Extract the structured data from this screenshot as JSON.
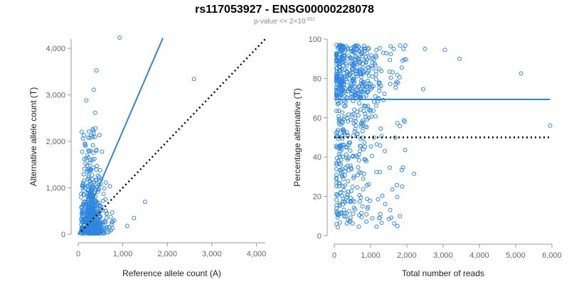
{
  "header": {
    "title": "rs117053927 - ENSG00000228078",
    "subtitle_prefix": "p-value <= 2×10",
    "subtitle_exponent": "-311"
  },
  "colors": {
    "points": "#2e86de",
    "fit": "#2e86de",
    "reference": "#000000",
    "axis": "#999999"
  },
  "chart_data": [
    {
      "type": "scatter",
      "xlabel": "Reference allele count (A)",
      "ylabel": "Alternative allele count (T)",
      "xlim": [
        0,
        4200
      ],
      "ylim": [
        0,
        4200
      ],
      "xticks": [
        0,
        1000,
        2000,
        3000,
        4000
      ],
      "xtick_labels": [
        "0",
        "1,000",
        "2,000",
        "3,000",
        "4,000"
      ],
      "yticks": [
        0,
        1000,
        2000,
        3000,
        4000
      ],
      "ytick_labels": [
        "0",
        "1,000",
        "2,000",
        "3,000",
        "4,000"
      ],
      "fit_line": {
        "from": [
          0,
          0
        ],
        "to": [
          1900,
          4220
        ]
      },
      "reference_line": {
        "from": [
          0,
          0
        ],
        "to": [
          4200,
          4200
        ]
      },
      "notable_points": [
        [
          930,
          4230
        ],
        [
          2600,
          3340
        ],
        [
          1500,
          700
        ],
        [
          350,
          3110
        ],
        [
          180,
          2880
        ],
        [
          1100,
          180
        ],
        [
          1250,
          350
        ]
      ],
      "cluster": {
        "x_center": 200,
        "x_spread": 150,
        "y_scale": 400,
        "count": 650
      },
      "grid": false,
      "legend": "none"
    },
    {
      "type": "scatter",
      "xlabel": "Total number of reads",
      "ylabel": "Percentage alternative (T)",
      "xlim": [
        0,
        6000
      ],
      "ylim": [
        0,
        100
      ],
      "xticks": [
        0,
        1000,
        2000,
        3000,
        4000,
        5000,
        6000
      ],
      "xtick_labels": [
        "0",
        "1,000",
        "2,000",
        "3,000",
        "4,000",
        "5,000",
        "6,000"
      ],
      "yticks": [
        0,
        20,
        40,
        60,
        80,
        100
      ],
      "ytick_labels": [
        "0",
        "20",
        "40",
        "60",
        "80",
        "100"
      ],
      "fit_line": {
        "from": [
          0,
          69.3
        ],
        "to": [
          5950,
          69.3
        ]
      },
      "reference_line": {
        "from": [
          0,
          50
        ],
        "to": [
          5950,
          50
        ]
      },
      "notable_points": [
        [
          5950,
          56
        ],
        [
          5150,
          82.5
        ],
        [
          3450,
          90
        ],
        [
          3050,
          94.5
        ],
        [
          2450,
          74.5
        ],
        [
          2200,
          31.5
        ],
        [
          1600,
          23.5
        ],
        [
          2500,
          95
        ],
        [
          1050,
          88
        ],
        [
          1250,
          9
        ]
      ],
      "cluster": {
        "x_center": 500,
        "x_spread": 380,
        "count": 650
      },
      "grid": false,
      "legend": "none"
    }
  ]
}
